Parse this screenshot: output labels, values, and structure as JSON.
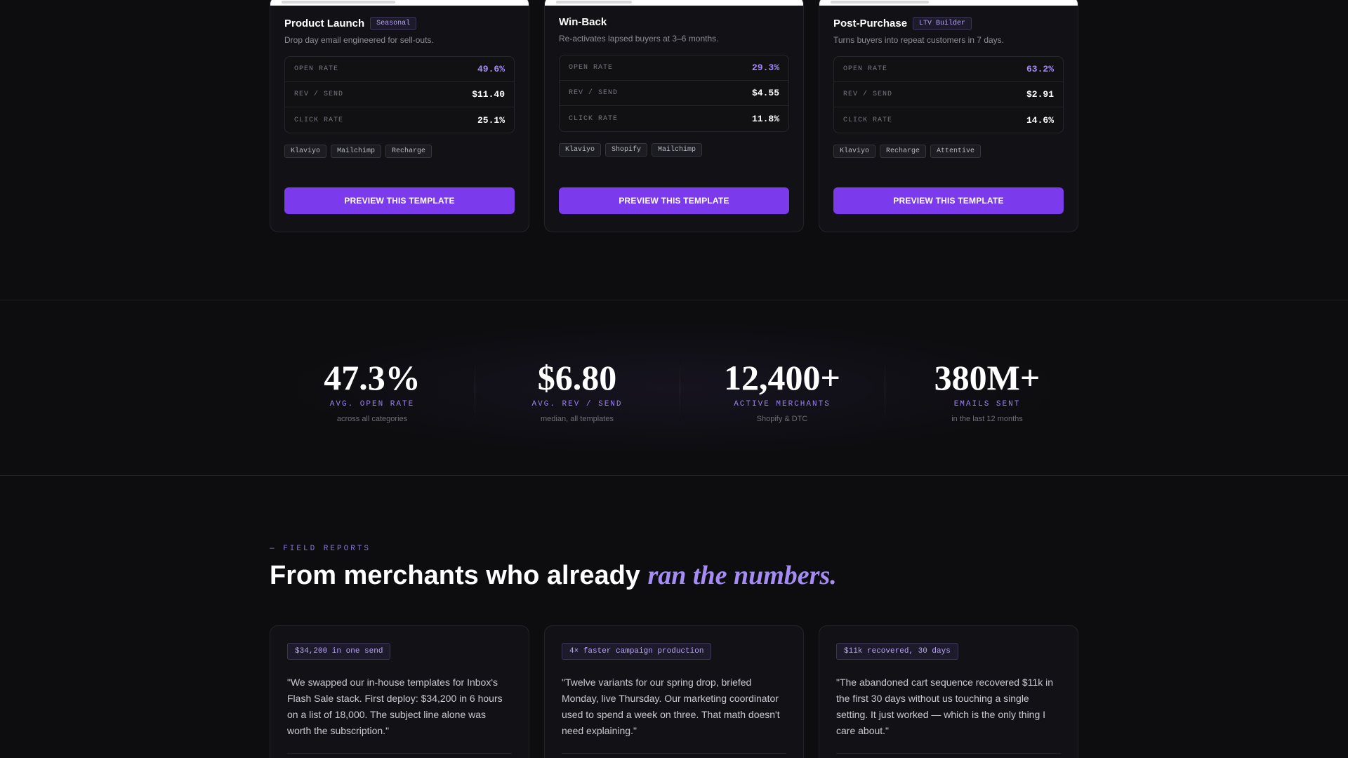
{
  "templates": [
    {
      "title": "Product Launch",
      "badge": "Seasonal",
      "subtitle": "Drop day email engineered for sell-outs.",
      "metrics": [
        {
          "label": "OPEN RATE",
          "value": "49.6%"
        },
        {
          "label": "REV / SEND",
          "value": "$11.40"
        },
        {
          "label": "CLICK RATE",
          "value": "25.1%"
        }
      ],
      "tags": [
        "Klaviyo",
        "Mailchimp",
        "Recharge"
      ],
      "button": "PREVIEW THIS TEMPLATE"
    },
    {
      "title": "Win-Back",
      "badge": "",
      "subtitle": "Re-activates lapsed buyers at 3–6 months.",
      "metrics": [
        {
          "label": "OPEN RATE",
          "value": "29.3%"
        },
        {
          "label": "REV / SEND",
          "value": "$4.55"
        },
        {
          "label": "CLICK RATE",
          "value": "11.8%"
        }
      ],
      "tags": [
        "Klaviyo",
        "Shopify",
        "Mailchimp"
      ],
      "button": "PREVIEW THIS TEMPLATE"
    },
    {
      "title": "Post-Purchase",
      "badge": "LTV Builder",
      "subtitle": "Turns buyers into repeat customers in 7 days.",
      "metrics": [
        {
          "label": "OPEN RATE",
          "value": "63.2%"
        },
        {
          "label": "REV / SEND",
          "value": "$2.91"
        },
        {
          "label": "CLICK RATE",
          "value": "14.6%"
        }
      ],
      "tags": [
        "Klaviyo",
        "Recharge",
        "Attentive"
      ],
      "button": "PREVIEW THIS TEMPLATE"
    }
  ],
  "stats": [
    {
      "value": "47.3%",
      "label": "AVG. OPEN RATE",
      "note": "across all categories"
    },
    {
      "value": "$6.80",
      "label": "AVG. REV / SEND",
      "note": "median, all templates"
    },
    {
      "value": "12,400+",
      "label": "ACTIVE MERCHANTS",
      "note": "Shopify & DTC"
    },
    {
      "value": "380M+",
      "label": "EMAILS SENT",
      "note": "in the last 12 months"
    }
  ],
  "reports_section": {
    "eyebrow": "— FIELD REPORTS",
    "headline_plain": "From merchants who already ",
    "headline_accent": "ran the numbers."
  },
  "reports": [
    {
      "badge": "$34,200 in one send",
      "quote": "\"We swapped our in-house templates for Inbox's Flash Sale stack. First deploy: $34,200 in 6 hours on a list of 18,000. The subject line alone was worth the subscription.\""
    },
    {
      "badge": "4× faster campaign production",
      "quote": "\"Twelve variants for our spring drop, briefed Monday, live Thursday. Our marketing coordinator used to spend a week on three. That math doesn't need explaining.\""
    },
    {
      "badge": "$11k recovered, 30 days",
      "quote": "\"The abandoned cart sequence recovered $11k in the first 30 days without us touching a single setting. It just worked — which is the only thing I care about.\""
    }
  ],
  "colors": {
    "background": "#0d0d10",
    "accent": "#7c3aed",
    "accent_text": "#a58cf5"
  }
}
